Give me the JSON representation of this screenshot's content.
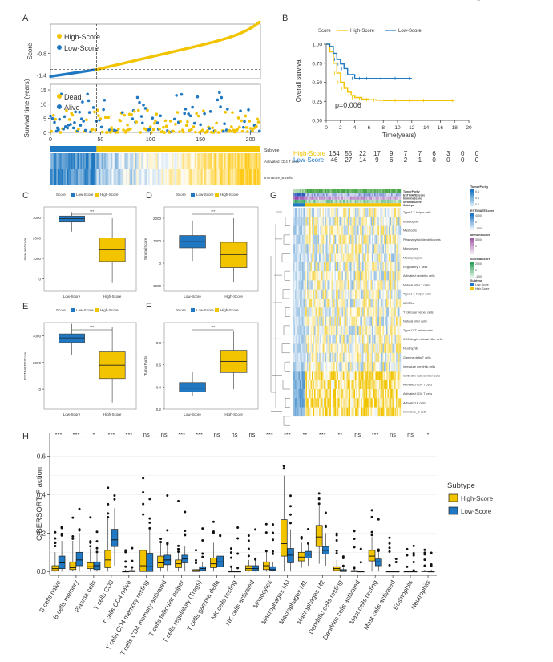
{
  "colors": {
    "high": "#f2c400",
    "low": "#1f78c1",
    "axis": "#333333",
    "grid": "#dddddd"
  },
  "panel_labels": [
    "A",
    "B",
    "C",
    "D",
    "E",
    "F",
    "G",
    "H"
  ],
  "chart_data": [
    {
      "id": "A-score",
      "type": "scatter",
      "ylabel": "Score",
      "yticks": [
        -1.4,
        -0.8
      ],
      "ylim": [
        -1.5,
        0
      ],
      "xlim": [
        0,
        210
      ],
      "cutoff_index": 46,
      "cutoff_value": -1.25,
      "legend": [
        "High-Score",
        "Low-Score"
      ]
    },
    {
      "id": "A-survival",
      "type": "scatter",
      "ylabel": "Survival time (years)",
      "yticks": [
        0,
        5,
        10,
        15
      ],
      "ylim": [
        0,
        17
      ],
      "xticks": [
        0,
        50,
        100,
        150,
        200
      ],
      "xlim": [
        0,
        210
      ],
      "cutoff_index": 46,
      "legend": [
        "Dead",
        "Alive"
      ],
      "subtype_title": "Subtype",
      "heatmap_rows": [
        "Activated CD4 T cells",
        "Immature_B cells"
      ]
    },
    {
      "id": "B",
      "type": "line",
      "title": "Score",
      "legend": [
        "High-Score",
        "Low-Score"
      ],
      "ylabel": "Overall survival",
      "xlabel": "Time(years)",
      "xticks": [
        0,
        2,
        4,
        6,
        8,
        10,
        12,
        14,
        16,
        18,
        20
      ],
      "yticks": [
        "0.00",
        "0.25",
        "0.50",
        "0.75",
        "1.00"
      ],
      "xlim": [
        0,
        20
      ],
      "ylim": [
        0,
        1
      ],
      "pvalue": "p=0.006",
      "series": [
        {
          "name": "High-Score",
          "x": [
            0,
            0.5,
            1,
            1.5,
            2,
            2.5,
            3,
            3.5,
            4,
            5,
            6,
            7,
            8,
            10,
            12,
            14,
            16,
            18
          ],
          "y": [
            1.0,
            0.9,
            0.75,
            0.62,
            0.5,
            0.42,
            0.37,
            0.33,
            0.3,
            0.28,
            0.27,
            0.265,
            0.26,
            0.26,
            0.26,
            0.26,
            0.26,
            0.26
          ]
        },
        {
          "name": "Low-Score",
          "x": [
            0,
            0.5,
            1,
            1.5,
            2,
            2.5,
            3,
            4,
            5,
            6,
            8,
            10,
            12
          ],
          "y": [
            1.0,
            0.97,
            0.88,
            0.8,
            0.74,
            0.68,
            0.6,
            0.55,
            0.55,
            0.55,
            0.55,
            0.55,
            0.55
          ]
        }
      ],
      "risk_table": {
        "rows": [
          {
            "name": "High-Score",
            "values": [
              164,
              55,
              22,
              17,
              9,
              7,
              7,
              6,
              3,
              0,
              0
            ]
          },
          {
            "name": "Low-Score",
            "values": [
              46,
              27,
              14,
              9,
              6,
              2,
              1,
              0,
              0,
              0,
              0
            ]
          }
        ]
      }
    },
    {
      "id": "C",
      "type": "boxplot",
      "ylabel": "ImmuneScore",
      "legend_title": "Score",
      "categories": [
        "Low-Score",
        "High-Score"
      ],
      "yticks": [
        0,
        1000,
        2000,
        3000
      ],
      "ylim": [
        -600,
        3500
      ],
      "sig": "***",
      "boxes": [
        {
          "group": "Low-Score",
          "min": 2300,
          "q1": 2770,
          "median": 2930,
          "q3": 3060,
          "max": 3250
        },
        {
          "group": "High-Score",
          "min": -200,
          "q1": 850,
          "median": 1450,
          "q3": 2000,
          "max": 2950
        }
      ]
    },
    {
      "id": "D",
      "type": "boxplot",
      "ylabel": "StromalScore",
      "legend_title": "Score",
      "categories": [
        "Low-Score",
        "High-Score"
      ],
      "yticks": [
        -1000,
        0,
        1000,
        2000
      ],
      "ylim": [
        -1250,
        2500
      ],
      "sig": "***",
      "boxes": [
        {
          "group": "Low-Score",
          "min": 100,
          "q1": 680,
          "median": 960,
          "q3": 1230,
          "max": 1900
        },
        {
          "group": "High-Score",
          "min": -850,
          "q1": -200,
          "median": 380,
          "q3": 930,
          "max": 2000
        }
      ]
    },
    {
      "id": "E",
      "type": "boxplot",
      "ylabel": "ESTIMATEScore",
      "legend_title": "Score",
      "categories": [
        "Low-Score",
        "High-Score"
      ],
      "yticks": [
        0,
        2000,
        4000
      ],
      "ylim": [
        -1500,
        5000
      ],
      "sig": "***",
      "boxes": [
        {
          "group": "Low-Score",
          "min": 2600,
          "q1": 3500,
          "median": 3850,
          "q3": 4150,
          "max": 4900
        },
        {
          "group": "High-Score",
          "min": -1000,
          "q1": 800,
          "median": 1800,
          "q3": 2800,
          "max": 4700
        }
      ]
    },
    {
      "id": "F",
      "type": "boxplot",
      "ylabel": "TumorPurity",
      "legend_title": "Score",
      "categories": [
        "Low-Score",
        "High-Score"
      ],
      "yticks": [
        0.2,
        0.4,
        0.6,
        0.8
      ],
      "ylim": [
        0.2,
        0.98
      ],
      "sig": "***",
      "boxes": [
        {
          "group": "Low-Score",
          "min": 0.32,
          "q1": 0.355,
          "median": 0.39,
          "q3": 0.44,
          "max": 0.54
        },
        {
          "group": "High-Score",
          "min": 0.38,
          "q1": 0.53,
          "median": 0.63,
          "q3": 0.73,
          "max": 0.9
        }
      ]
    },
    {
      "id": "G",
      "type": "heatmap",
      "annotation_rows": [
        "TumorPurity",
        "ESTIMATEScore",
        "ImmuneScore",
        "StromalScore",
        "Subtype"
      ],
      "rows": [
        "Type 2 T helper cells",
        "Eosinophils",
        "Mast cells",
        "Plasmacytoid dendritic cells",
        "Monocytes",
        "Macrophages",
        "Regulatory T cells",
        "Activated dendritic cells",
        "Natural killer T cells",
        "Type 1 T helper cells",
        "MDSCs",
        "T follicular helper cells",
        "Natural killer cells",
        "Type 17 T helper cells",
        "CD56bright natural killer cells",
        "Neutrophils",
        "Gamma delta T cells",
        "Immature dendritic cells",
        "CD56dim natural killer cells",
        "Activated CD4 T cells",
        "Activated CD8 T cells",
        "Activated B cells",
        "Immature_B cells"
      ],
      "legend": [
        {
          "title": "TumorPurity",
          "ticks": [
            "0.8",
            "0.6",
            "0.4"
          ]
        },
        {
          "title": "ESTIMATEScore",
          "ticks": [
            "4000",
            "0",
            "-1000"
          ]
        },
        {
          "title": "ImmuneScore",
          "ticks": [
            "3000",
            "0"
          ]
        },
        {
          "title": "StromalScore",
          "ticks": [
            "2000",
            "0",
            "-1000"
          ]
        },
        {
          "title": "Subtype",
          "ticks": [
            "Low-Score",
            "High-Score"
          ]
        }
      ]
    },
    {
      "id": "H",
      "type": "boxplot",
      "ylabel": "CIBERSORT Fraction",
      "yticks": [
        "0.0",
        "0.2",
        "0.4",
        "0.6"
      ],
      "ylim": [
        -0.02,
        0.72
      ],
      "legend_title": "Subtype",
      "legend": [
        "High-Score",
        "Low-Score"
      ],
      "categories": [
        "B cells naive",
        "B cells memory",
        "Plasma cells",
        "T cells CD8",
        "T cells CD4 naive",
        "T cells CD4 memory resting",
        "T cells CD4 memory activated",
        "T cells follicular helper",
        "T cells regulatory (Tregs)",
        "T cells gamma delta",
        "NK cells resting",
        "NK cells activated",
        "Monocytes",
        "Macrophages M0",
        "Macrophages M1",
        "Macrophages M2",
        "Dendritic cells resting",
        "Dendritic cells activated",
        "Mast cells resting",
        "Mast cells activated",
        "Eosinophils",
        "Neutrophils"
      ],
      "sig": [
        "***",
        "***",
        "*",
        "***",
        "***",
        "ns",
        "ns",
        "***",
        "***",
        "ns",
        "ns",
        "ns",
        "***",
        "***",
        "**",
        "***",
        "**",
        "ns",
        "***",
        "ns",
        "ns",
        "*"
      ],
      "high": [
        [
          0,
          0.005,
          0.015,
          0.03,
          0.1
        ],
        [
          0,
          0.01,
          0.02,
          0.05,
          0.16
        ],
        [
          0,
          0.015,
          0.025,
          0.045,
          0.12
        ],
        [
          0,
          0.02,
          0.06,
          0.11,
          0.28
        ],
        [
          0,
          0,
          0,
          0,
          0.01
        ],
        [
          0,
          0,
          0.03,
          0.11,
          0.25
        ],
        [
          0,
          0.02,
          0.045,
          0.08,
          0.15
        ],
        [
          0,
          0.02,
          0.04,
          0.06,
          0.1
        ],
        [
          0,
          0,
          0.005,
          0.01,
          0.02
        ],
        [
          0,
          0.02,
          0.04,
          0.07,
          0.15
        ],
        [
          0,
          0,
          0,
          0,
          0.02
        ],
        [
          0,
          0.005,
          0.015,
          0.03,
          0.06
        ],
        [
          0,
          0.01,
          0.03,
          0.05,
          0.1
        ],
        [
          0,
          0.08,
          0.145,
          0.27,
          0.5
        ],
        [
          0.02,
          0.055,
          0.075,
          0.1,
          0.15
        ],
        [
          0.04,
          0.13,
          0.18,
          0.24,
          0.35
        ],
        [
          0,
          0.005,
          0.015,
          0.025,
          0.06
        ],
        [
          0,
          0,
          0,
          0.005,
          0.015
        ],
        [
          0,
          0.055,
          0.08,
          0.11,
          0.18
        ],
        [
          0,
          0,
          0,
          0,
          0.005
        ],
        [
          0,
          0,
          0,
          0,
          0.005
        ],
        [
          0,
          0,
          0,
          0.002,
          0.01
        ]
      ],
      "low": [
        [
          0,
          0.015,
          0.045,
          0.08,
          0.16
        ],
        [
          0,
          0.03,
          0.06,
          0.1,
          0.2
        ],
        [
          0,
          0.01,
          0.03,
          0.05,
          0.1
        ],
        [
          0.03,
          0.13,
          0.165,
          0.22,
          0.33
        ],
        [
          0,
          0,
          0,
          0.005,
          0.02
        ],
        [
          0,
          0,
          0.025,
          0.095,
          0.22
        ],
        [
          0,
          0.035,
          0.06,
          0.085,
          0.14
        ],
        [
          0,
          0.045,
          0.065,
          0.085,
          0.13
        ],
        [
          0,
          0.005,
          0.015,
          0.025,
          0.05
        ],
        [
          0,
          0.025,
          0.05,
          0.08,
          0.15
        ],
        [
          0,
          0,
          0,
          0,
          0.005
        ],
        [
          0,
          0.005,
          0.015,
          0.03,
          0.06
        ],
        [
          0,
          0.005,
          0.01,
          0.025,
          0.05
        ],
        [
          0,
          0.045,
          0.085,
          0.12,
          0.22
        ],
        [
          0.03,
          0.07,
          0.09,
          0.105,
          0.14
        ],
        [
          0.03,
          0.09,
          0.11,
          0.13,
          0.2
        ],
        [
          0,
          0,
          0.005,
          0.01,
          0.02
        ],
        [
          0,
          0,
          0,
          0,
          0.01
        ],
        [
          0,
          0.03,
          0.05,
          0.065,
          0.1
        ],
        [
          0,
          0,
          0,
          0,
          0.005
        ],
        [
          0,
          0,
          0,
          0,
          0.005
        ],
        [
          0,
          0,
          0,
          0,
          0.01
        ]
      ]
    }
  ]
}
